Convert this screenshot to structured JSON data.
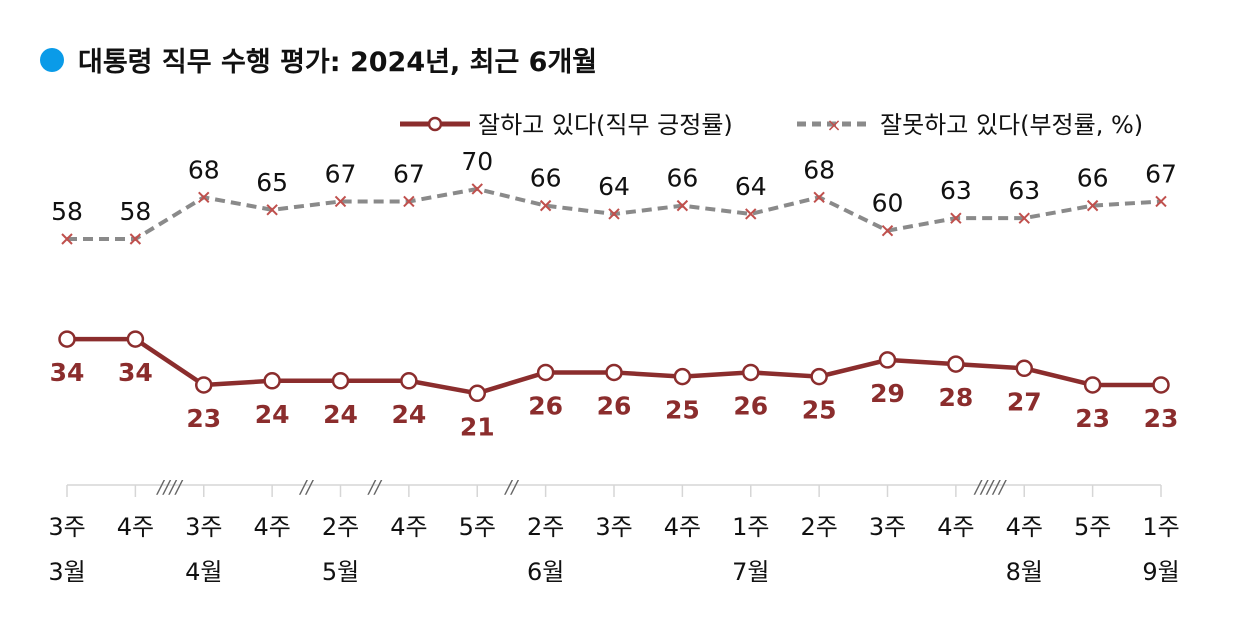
{
  "title": "대통령 직무 수행 평가: 2024년, 최근 6개월",
  "colors": {
    "title_dot": "#0a9be8",
    "positive": "#8b2d2d",
    "negative": "#8a8a8a",
    "negative_marker": "#c0504d"
  },
  "chart_data": {
    "type": "line",
    "title": "대통령 직무 수행 평가: 2024년, 최근 6개월",
    "categories": [
      "3주",
      "4주",
      "3주",
      "4주",
      "2주",
      "4주",
      "5주",
      "2주",
      "3주",
      "4주",
      "1주",
      "2주",
      "3주",
      "4주",
      "4주",
      "5주",
      "1주"
    ],
    "month_labels": [
      "3월",
      "",
      "4월",
      "",
      "5월",
      "",
      "",
      "6월",
      "",
      "",
      "7월",
      "",
      "",
      "",
      "8월",
      "",
      "9월"
    ],
    "series": [
      {
        "name": "잘하고 있다(직무 긍정률)",
        "values": [
          34,
          34,
          23,
          24,
          24,
          24,
          21,
          26,
          26,
          25,
          26,
          25,
          29,
          28,
          27,
          23,
          23
        ],
        "style": "solid",
        "marker": "circle"
      },
      {
        "name": "잘못하고 있다(부정률, %)",
        "values": [
          58,
          58,
          68,
          65,
          67,
          67,
          70,
          66,
          64,
          66,
          64,
          68,
          60,
          63,
          63,
          66,
          67
        ],
        "style": "dashed",
        "marker": "x"
      }
    ],
    "axis_breaks": [
      {
        "between": [
          1,
          2
        ],
        "mark": "////"
      },
      {
        "between": [
          3,
          4
        ],
        "mark": "//"
      },
      {
        "between": [
          4,
          5
        ],
        "mark": "//"
      },
      {
        "between": [
          6,
          7
        ],
        "mark": "//"
      },
      {
        "between": [
          13,
          14
        ],
        "mark": "/////"
      }
    ],
    "ylim": [
      0,
      75
    ],
    "grid": false,
    "legend": "top-right"
  }
}
